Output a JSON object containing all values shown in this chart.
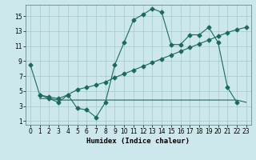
{
  "xlabel": "Humidex (Indice chaleur)",
  "bg_color": "#cce8ec",
  "grid_color": "#aacdd4",
  "line_color": "#1a6b5e",
  "xlim": [
    -0.5,
    23.5
  ],
  "ylim": [
    0.5,
    16.5
  ],
  "xticks": [
    0,
    1,
    2,
    3,
    4,
    5,
    6,
    7,
    8,
    9,
    10,
    11,
    12,
    13,
    14,
    15,
    16,
    17,
    18,
    19,
    20,
    21,
    22,
    23
  ],
  "yticks": [
    1,
    3,
    5,
    7,
    9,
    11,
    13,
    15
  ],
  "line1_x": [
    0,
    1,
    2,
    3,
    4,
    5,
    6,
    7,
    8,
    9,
    10,
    11,
    12,
    13,
    14,
    15,
    16,
    17,
    18,
    19,
    20,
    21,
    22
  ],
  "line1_y": [
    8.5,
    4.5,
    4.0,
    3.5,
    4.5,
    2.7,
    2.5,
    1.5,
    3.5,
    8.5,
    11.5,
    14.5,
    15.2,
    16.0,
    15.5,
    11.2,
    11.2,
    12.5,
    12.5,
    13.5,
    11.5,
    5.5,
    3.5
  ],
  "line2_x": [
    1,
    2,
    3,
    4,
    5,
    6,
    7,
    8,
    9,
    10,
    11,
    12,
    13,
    14,
    15,
    16,
    17,
    18,
    19,
    20,
    21,
    22,
    23
  ],
  "line2_y": [
    4.5,
    4.2,
    4.0,
    4.5,
    5.2,
    5.5,
    5.8,
    6.2,
    6.8,
    7.3,
    7.8,
    8.3,
    8.8,
    9.3,
    9.8,
    10.3,
    10.8,
    11.3,
    11.8,
    12.3,
    12.8,
    13.2,
    13.5
  ],
  "line3_x": [
    1,
    2,
    3,
    4,
    5,
    6,
    7,
    8,
    9,
    10,
    11,
    12,
    13,
    14,
    15,
    16,
    17,
    18,
    19,
    20,
    21,
    22,
    23
  ],
  "line3_y": [
    4.0,
    4.0,
    3.8,
    3.8,
    3.8,
    3.8,
    3.8,
    3.8,
    3.8,
    3.8,
    3.8,
    3.8,
    3.8,
    3.8,
    3.8,
    3.8,
    3.8,
    3.8,
    3.8,
    3.8,
    3.8,
    3.8,
    3.5
  ]
}
